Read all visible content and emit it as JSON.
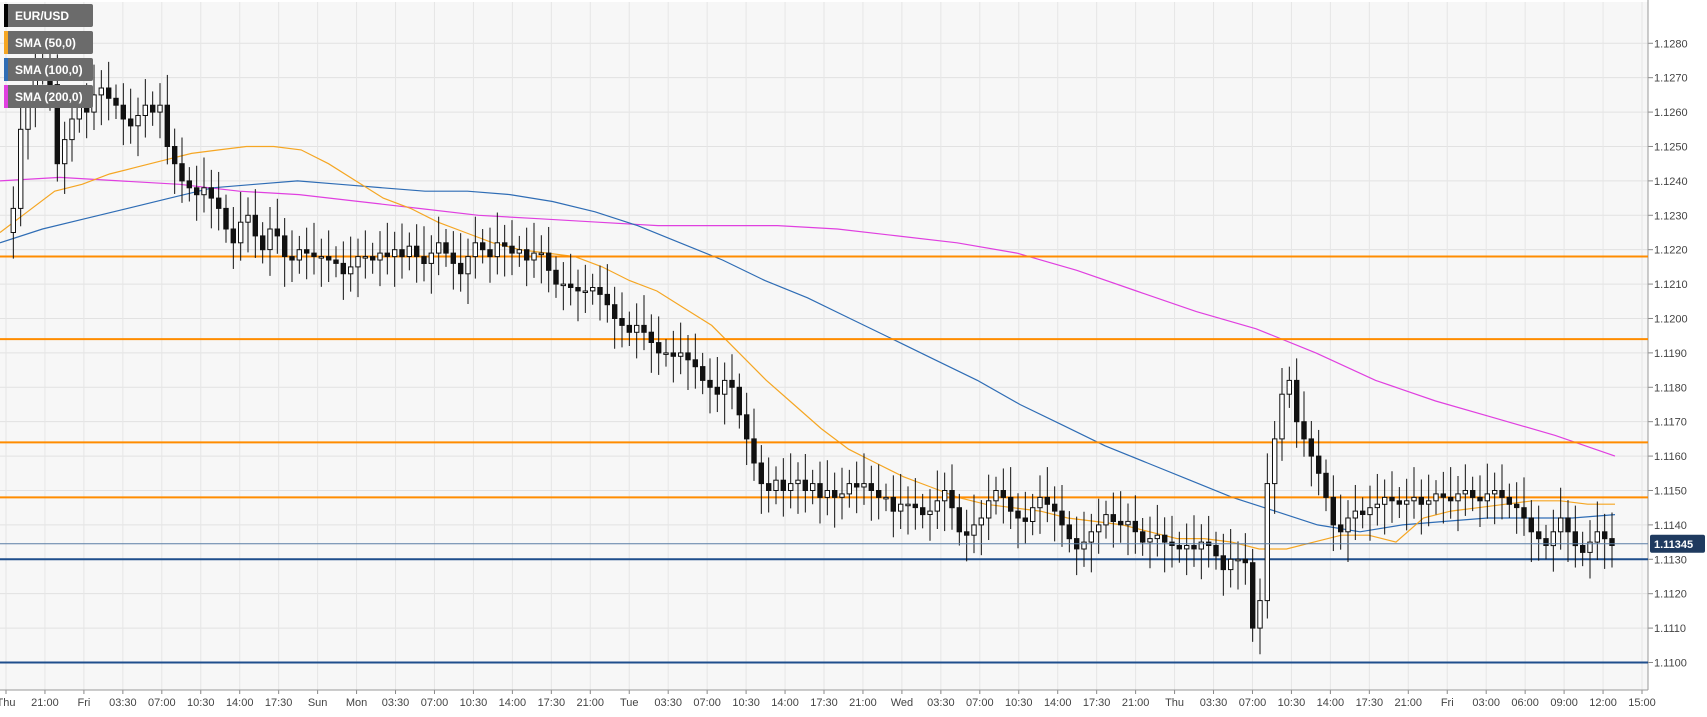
{
  "chart_data": {
    "type": "candlestick",
    "symbol": "EUR/USD",
    "current_price_label": "1.11345",
    "ylim": [
      1.1092,
      1.1292
    ],
    "y_ticks": [
      "1.1280",
      "1.1270",
      "1.1260",
      "1.1250",
      "1.1240",
      "1.1230",
      "1.1220",
      "1.1210",
      "1.1200",
      "1.1190",
      "1.1180",
      "1.1170",
      "1.1160",
      "1.1150",
      "1.1140",
      "1.1130",
      "1.1120",
      "1.1110",
      "1.1100"
    ],
    "x_ticks": [
      "Thu",
      "21:00",
      "Fri",
      "03:30",
      "07:00",
      "10:30",
      "14:00",
      "17:30",
      "Sun",
      "Mon",
      "03:30",
      "07:00",
      "10:30",
      "14:00",
      "17:30",
      "21:00",
      "Tue",
      "03:30",
      "07:00",
      "10:30",
      "14:00",
      "17:30",
      "21:00",
      "Wed",
      "03:30",
      "07:00",
      "10:30",
      "14:00",
      "17:30",
      "21:00",
      "Thu",
      "03:30",
      "07:00",
      "10:30",
      "14:00",
      "17:30",
      "21:00",
      "Fri",
      "03:00",
      "06:00",
      "09:00",
      "12:00",
      "15:00"
    ],
    "legend": [
      {
        "label": "EUR/USD",
        "color": "#000000"
      },
      {
        "label": "SMA (50,0)",
        "color": "#f5a623"
      },
      {
        "label": "SMA (100,0)",
        "color": "#2f6db5"
      },
      {
        "label": "SMA (200,0)",
        "color": "#e040e0"
      }
    ],
    "horizontal_levels": [
      {
        "value": 1.1218,
        "color": "#ff8c00"
      },
      {
        "value": 1.1194,
        "color": "#ff8c00"
      },
      {
        "value": 1.1164,
        "color": "#ff8c00"
      },
      {
        "value": 1.1148,
        "color": "#ff8c00"
      },
      {
        "value": 1.113,
        "color": "#1f4e8c"
      },
      {
        "value": 1.11,
        "color": "#1f4e8c"
      }
    ],
    "current_price": 1.11345,
    "candles_close": [
      1.1225,
      1.1232,
      1.1255,
      1.1262,
      1.1275,
      1.1272,
      1.1268,
      1.1245,
      1.1252,
      1.1258,
      1.1262,
      1.126,
      1.1265,
      1.1267,
      1.1264,
      1.1262,
      1.1258,
      1.1256,
      1.1259,
      1.1262,
      1.126,
      1.1262,
      1.125,
      1.1245,
      1.124,
      1.1238,
      1.1236,
      1.1238,
      1.1235,
      1.1232,
      1.1226,
      1.1222,
      1.1228,
      1.123,
      1.1224,
      1.122,
      1.1226,
      1.1224,
      1.1218,
      1.1217,
      1.122,
      1.1219,
      1.1218,
      1.1218,
      1.1217,
      1.1216,
      1.1213,
      1.1215,
      1.1218,
      1.1218,
      1.1217,
      1.1219,
      1.1218,
      1.122,
      1.1218,
      1.1221,
      1.1218,
      1.1216,
      1.1219,
      1.1222,
      1.1219,
      1.1216,
      1.1213,
      1.1218,
      1.1222,
      1.122,
      1.1218,
      1.1222,
      1.1221,
      1.1219,
      1.122,
      1.1217,
      1.1219,
      1.1219,
      1.1214,
      1.121,
      1.121,
      1.1209,
      1.1208,
      1.1208,
      1.1209,
      1.1207,
      1.1204,
      1.12,
      1.1198,
      1.1196,
      1.1198,
      1.1196,
      1.1193,
      1.119,
      1.119,
      1.1189,
      1.119,
      1.1188,
      1.1186,
      1.1182,
      1.118,
      1.1178,
      1.1182,
      1.118,
      1.1172,
      1.1165,
      1.1158,
      1.1152,
      1.115,
      1.1153,
      1.115,
      1.1152,
      1.1153,
      1.115,
      1.1152,
      1.1148,
      1.115,
      1.1148,
      1.1149,
      1.1152,
      1.1151,
      1.1152,
      1.115,
      1.1148,
      1.1148,
      1.1144,
      1.1146,
      1.1146,
      1.1145,
      1.1143,
      1.1144,
      1.1147,
      1.115,
      1.1145,
      1.1138,
      1.1137,
      1.114,
      1.1142,
      1.1147,
      1.115,
      1.1148,
      1.1144,
      1.1142,
      1.1141,
      1.1145,
      1.1148,
      1.1146,
      1.1144,
      1.114,
      1.1136,
      1.1133,
      1.1135,
      1.1138,
      1.114,
      1.1143,
      1.1141,
      1.114,
      1.1141,
      1.1138,
      1.1135,
      1.1136,
      1.1137,
      1.1135,
      1.1134,
      1.1133,
      1.1134,
      1.1133,
      1.1135,
      1.1134,
      1.1131,
      1.1127,
      1.113,
      1.113,
      1.1129,
      1.111,
      1.1118,
      1.1152,
      1.1165,
      1.1178,
      1.1182,
      1.117,
      1.1165,
      1.116,
      1.1155,
      1.1148,
      1.114,
      1.1138,
      1.1142,
      1.1144,
      1.1143,
      1.1145,
      1.1146,
      1.1148,
      1.1147,
      1.1146,
      1.1147,
      1.1148,
      1.1146,
      1.1147,
      1.1149,
      1.1148,
      1.1147,
      1.1149,
      1.115,
      1.1148,
      1.1147,
      1.1149,
      1.115,
      1.1148,
      1.1146,
      1.1145,
      1.1142,
      1.1138,
      1.1136,
      1.1134,
      1.1138,
      1.1142,
      1.1138,
      1.1134,
      1.1132,
      1.1135,
      1.1138,
      1.1136,
      1.1134
    ],
    "sma50": [
      1.1225,
      1.1231,
      1.1237,
      1.1239,
      1.1242,
      1.1244,
      1.1246,
      1.1248,
      1.1249,
      1.125,
      1.125,
      1.1249,
      1.1245,
      1.124,
      1.1235,
      1.1232,
      1.1228,
      1.1225,
      1.1222,
      1.122,
      1.1219,
      1.1218,
      1.1215,
      1.1211,
      1.1208,
      1.1203,
      1.1198,
      1.119,
      1.1182,
      1.1175,
      1.1168,
      1.1162,
      1.1158,
      1.1154,
      1.1151,
      1.1148,
      1.1146,
      1.1145,
      1.1144,
      1.1142,
      1.1141,
      1.114,
      1.1138,
      1.1136,
      1.1136,
      1.1135,
      1.1133,
      1.1133,
      1.1135,
      1.1137,
      1.1137,
      1.1135,
      1.1142,
      1.1144,
      1.1145,
      1.1146,
      1.1147,
      1.1147,
      1.1146,
      1.1146
    ],
    "sma100": [
      1.1222,
      1.1226,
      1.1229,
      1.1232,
      1.1235,
      1.1238,
      1.1239,
      1.124,
      1.1239,
      1.1238,
      1.1237,
      1.1237,
      1.1236,
      1.1234,
      1.1231,
      1.1227,
      1.1222,
      1.1217,
      1.1211,
      1.1206,
      1.12,
      1.1194,
      1.1188,
      1.1182,
      1.1175,
      1.1169,
      1.1163,
      1.1158,
      1.1153,
      1.1148,
      1.1144,
      1.114,
      1.1138,
      1.114,
      1.1141,
      1.1142,
      1.1142,
      1.1142,
      1.1143
    ],
    "sma200": [
      1.124,
      1.1241,
      1.124,
      1.1239,
      1.1237,
      1.1236,
      1.1234,
      1.1232,
      1.123,
      1.1229,
      1.1228,
      1.1227,
      1.1227,
      1.1227,
      1.1226,
      1.1224,
      1.1222,
      1.1219,
      1.1214,
      1.1208,
      1.1202,
      1.1197,
      1.119,
      1.1182,
      1.1176,
      1.1171,
      1.1166,
      1.116
    ]
  }
}
